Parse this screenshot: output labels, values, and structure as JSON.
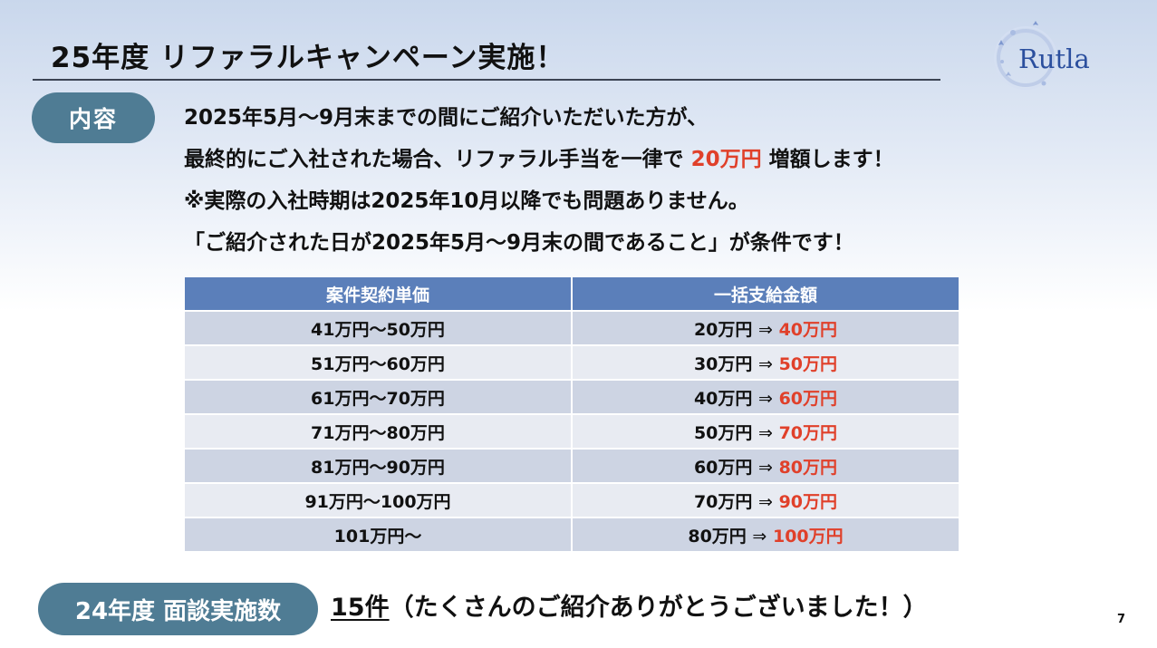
{
  "title": "25年度 リファラルキャンペーン実施！",
  "logo": {
    "text": "Rutla"
  },
  "content_pill": "内容",
  "lines": [
    {
      "text": "2025年5月～9月末までの間にご紹介いただいた方が、"
    },
    {
      "before": "最終的にご入社された場合、リファラル手当を一律で ",
      "highlight": "20万円",
      "after": " 増額します！"
    },
    {
      "text": "※実際の入社時期は2025年10月以降でも問題ありません。"
    },
    {
      "text": "「ご紹介された日が2025年5月～9月末の間であること」が条件です！"
    }
  ],
  "table": {
    "headers": [
      "案件契約単価",
      "一括支給金額"
    ],
    "arrow": "⇒",
    "rows": [
      {
        "range": "41万円～50万円",
        "from": "20万円",
        "to": "40万円"
      },
      {
        "range": "51万円～60万円",
        "from": "30万円",
        "to": "50万円"
      },
      {
        "range": "61万円～70万円",
        "from": "40万円",
        "to": "60万円"
      },
      {
        "range": "71万円～80万円",
        "from": "50万円",
        "to": "70万円"
      },
      {
        "range": "81万円～90万円",
        "from": "60万円",
        "to": "80万円"
      },
      {
        "range": "91万円～100万円",
        "from": "70万円",
        "to": "90万円"
      },
      {
        "range": "101万円～",
        "from": "80万円",
        "to": "100万円"
      }
    ]
  },
  "stats": {
    "label": "24年度 面談実施数",
    "count": "15件",
    "message": "（たくさんのご紹介ありがとうございました！）"
  },
  "page_number": "7",
  "colors": {
    "accent_red": "#e0402a",
    "header_blue": "#5b7fba",
    "pill": "#4f7c94",
    "logo_blue": "#2b4f9e"
  }
}
